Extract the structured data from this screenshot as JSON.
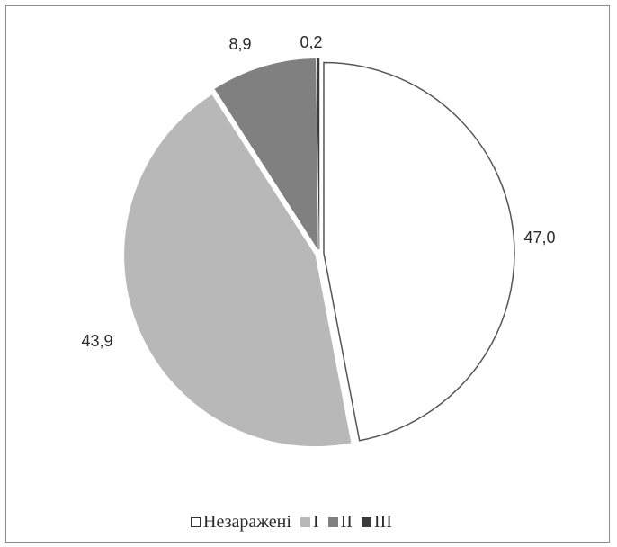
{
  "chart_data": {
    "type": "pie",
    "start_angle_deg": 0,
    "direction": "clockwise",
    "slices": [
      {
        "name": "Незаражені",
        "value": 47.0,
        "label": "47,0",
        "color": "#ffffff",
        "stroke": "#555555"
      },
      {
        "name": "I",
        "value": 43.9,
        "label": "43,9",
        "color": "#b8b8b8",
        "stroke": "#b8b8b8"
      },
      {
        "name": "II",
        "value": 8.9,
        "label": "8,9",
        "color": "#808080",
        "stroke": "#808080"
      },
      {
        "name": "III",
        "value": 0.2,
        "label": "0,2",
        "color": "#3a3a3a",
        "stroke": "#3a3a3a"
      }
    ],
    "legend_position": "bottom"
  },
  "legend": [
    {
      "label": "Незаражені",
      "color": "#ffffff",
      "border": "#333333"
    },
    {
      "label": "I",
      "color": "#b8b8b8",
      "border": "#b8b8b8"
    },
    {
      "label": "II",
      "color": "#808080",
      "border": "#808080"
    },
    {
      "label": "III",
      "color": "#3a3a3a",
      "border": "#3a3a3a"
    }
  ]
}
